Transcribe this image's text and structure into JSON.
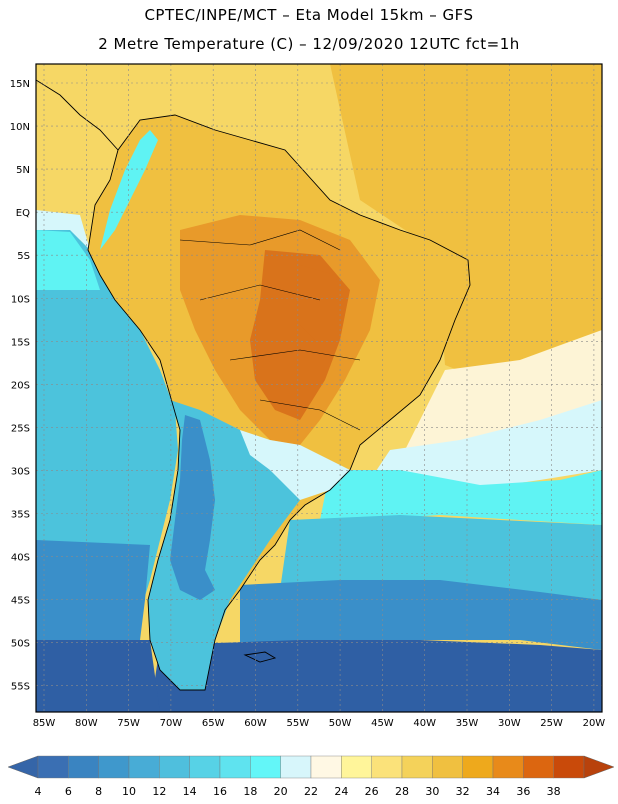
{
  "header": {
    "line1": "CPTEC/INPE/MCT –  Eta Model 15km – GFS",
    "line2": "2 Metre Temperature (C) – 12/09/2020 12UTC fct=1h"
  },
  "map": {
    "lat_labels": [
      "15N",
      "10N",
      "5N",
      "EQ",
      "5S",
      "10S",
      "15S",
      "20S",
      "25S",
      "30S",
      "35S",
      "40S",
      "45S",
      "50S",
      "55S"
    ],
    "lon_labels": [
      "85W",
      "80W",
      "75W",
      "70W",
      "65W",
      "60W",
      "55W",
      "50W",
      "45W",
      "40W",
      "35W",
      "30W",
      "25W",
      "20W"
    ],
    "colors": {
      "ocean_deep": "#2f5fa4",
      "ocean_mid": "#3a8fc9",
      "ocean_light": "#4cc3dc",
      "cyan": "#5ff3f3",
      "pale_cyan": "#d6f7fb",
      "cream": "#fdf4d6",
      "yellow": "#f6d765",
      "gold": "#f0c040",
      "orange": "#e89a2a",
      "dark_orange": "#d9731b"
    }
  },
  "colorbar": {
    "labels": [
      "4",
      "6",
      "8",
      "10",
      "12",
      "14",
      "16",
      "18",
      "20",
      "22",
      "24",
      "26",
      "28",
      "30",
      "32",
      "34",
      "36",
      "38"
    ],
    "bins": [
      "#3a6fb3",
      "#3a84c1",
      "#3f98cc",
      "#48acd6",
      "#4fbfdd",
      "#57d2e6",
      "#5fe3ef",
      "#63f6f8",
      "#d7f6fb",
      "#fff8e4",
      "#fff59a",
      "#fbe27a",
      "#f4d25a",
      "#f0c040",
      "#eea91c",
      "#e88a1a",
      "#dc6610",
      "#c94a0a"
    ],
    "left_arrow_color": "#3565a8",
    "right_arrow_color": "#b8420c"
  }
}
